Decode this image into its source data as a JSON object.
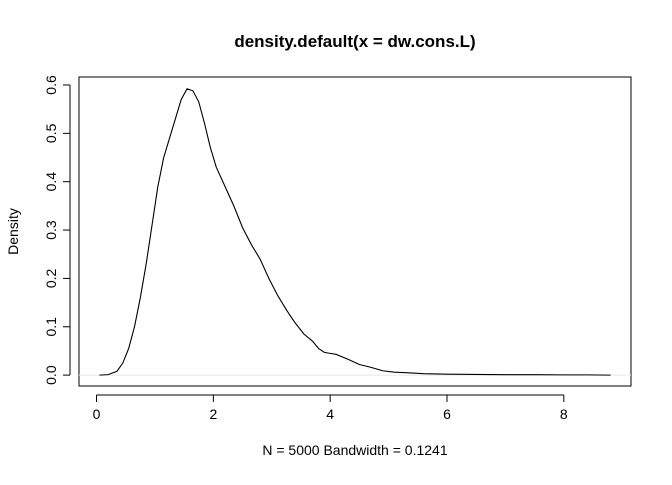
{
  "chart_data": {
    "type": "line",
    "title": "density.default(x = dw.cons.L)",
    "xlabel": "N = 5000   Bandwidth = 0.1241",
    "ylabel": "Density",
    "xlim": [
      -0.3,
      9.15
    ],
    "ylim": [
      -0.0225,
      0.6165
    ],
    "x_ticks": [
      0,
      2,
      4,
      6,
      8
    ],
    "y_ticks": [
      0.0,
      0.1,
      0.2,
      0.3,
      0.4,
      0.5,
      0.6
    ],
    "x_tick_labels": [
      "0",
      "2",
      "4",
      "6",
      "8"
    ],
    "y_tick_labels": [
      "0.0",
      "0.1",
      "0.2",
      "0.3",
      "0.4",
      "0.5",
      "0.6"
    ],
    "grid": false,
    "baseline": 0,
    "colors": {
      "line": "#000000",
      "baseline": "#e6e6e6",
      "frame": "#000000"
    },
    "series": [
      {
        "points": [
          [
            0.05,
            0.0
          ],
          [
            0.2,
            0.001
          ],
          [
            0.35,
            0.008
          ],
          [
            0.45,
            0.025
          ],
          [
            0.55,
            0.055
          ],
          [
            0.65,
            0.1
          ],
          [
            0.75,
            0.16
          ],
          [
            0.85,
            0.23
          ],
          [
            0.95,
            0.31
          ],
          [
            1.05,
            0.39
          ],
          [
            1.15,
            0.45
          ],
          [
            1.25,
            0.49
          ],
          [
            1.35,
            0.53
          ],
          [
            1.45,
            0.57
          ],
          [
            1.55,
            0.592
          ],
          [
            1.65,
            0.588
          ],
          [
            1.75,
            0.565
          ],
          [
            1.85,
            0.52
          ],
          [
            1.95,
            0.47
          ],
          [
            2.05,
            0.43
          ],
          [
            2.2,
            0.39
          ],
          [
            2.35,
            0.35
          ],
          [
            2.5,
            0.305
          ],
          [
            2.65,
            0.27
          ],
          [
            2.8,
            0.24
          ],
          [
            2.95,
            0.2
          ],
          [
            3.1,
            0.165
          ],
          [
            3.25,
            0.135
          ],
          [
            3.4,
            0.108
          ],
          [
            3.55,
            0.085
          ],
          [
            3.7,
            0.07
          ],
          [
            3.8,
            0.055
          ],
          [
            3.9,
            0.047
          ],
          [
            4.0,
            0.045
          ],
          [
            4.1,
            0.043
          ],
          [
            4.3,
            0.033
          ],
          [
            4.5,
            0.022
          ],
          [
            4.7,
            0.016
          ],
          [
            4.9,
            0.009
          ],
          [
            5.1,
            0.006
          ],
          [
            5.3,
            0.005
          ],
          [
            5.6,
            0.003
          ],
          [
            6.0,
            0.002
          ],
          [
            6.5,
            0.0015
          ],
          [
            7.0,
            0.001
          ],
          [
            7.5,
            0.001
          ],
          [
            8.0,
            0.0005
          ],
          [
            8.4,
            0.0005
          ],
          [
            8.8,
            0.0
          ]
        ]
      }
    ]
  }
}
